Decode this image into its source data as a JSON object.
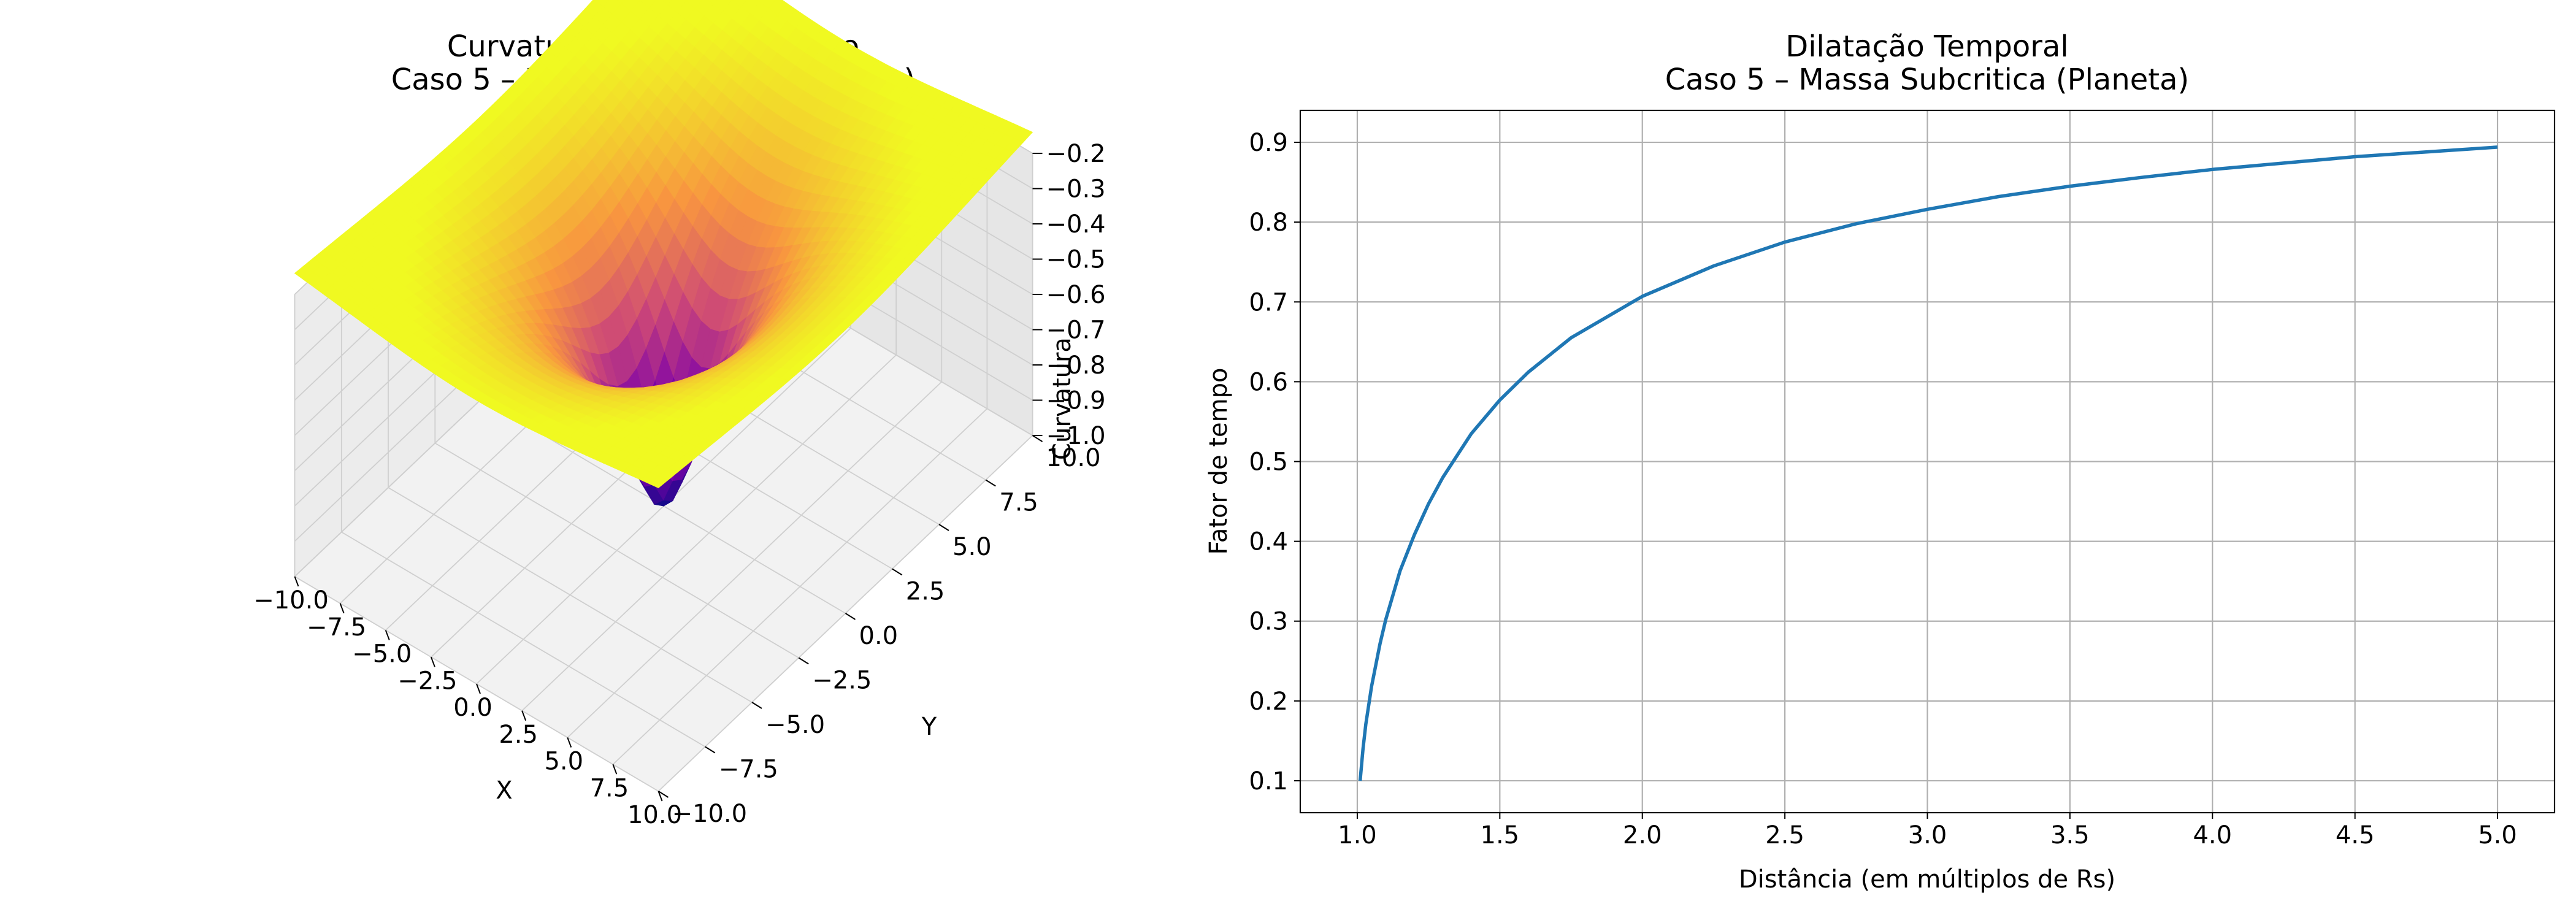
{
  "chart_data": [
    {
      "type": "surface3d",
      "title_line1": "Curvatura do Espaço-Tempo",
      "title_line2": "Caso 5 – Massa Subcritica (Planeta)",
      "xlabel": "X",
      "ylabel": "Y",
      "zlabel": "Curvatura",
      "xlim": [
        -10,
        10
      ],
      "ylim": [
        -10,
        10
      ],
      "zlim": [
        -1.0,
        -0.2
      ],
      "x_ticks": [
        "−10.0",
        "−7.5",
        "−5.0",
        "−2.5",
        "0.0",
        "2.5",
        "5.0",
        "7.5",
        "10.0"
      ],
      "y_ticks": [
        "−10.0",
        "−7.5",
        "−5.0",
        "−2.5",
        "0.0",
        "2.5",
        "5.0",
        "7.5",
        "10.0"
      ],
      "z_ticks": [
        "−0.2",
        "−0.3",
        "−0.4",
        "−0.5",
        "−0.6",
        "−0.7",
        "−0.8",
        "−0.9",
        "−1.0"
      ],
      "colormap": "plasma",
      "grid": true
    },
    {
      "type": "line",
      "title_line1": "Dilatação Temporal",
      "title_line2": "Caso 5 – Massa Subcritica (Planeta)",
      "xlabel": "Distância (em múltiplos de Rs)",
      "ylabel": "Fator de tempo",
      "xlim": [
        0.8,
        5.2
      ],
      "ylim": [
        0.06,
        0.94
      ],
      "x_ticks": [
        "1.0",
        "1.5",
        "2.0",
        "2.5",
        "3.0",
        "3.5",
        "4.0",
        "4.5",
        "5.0"
      ],
      "y_ticks": [
        "0.1",
        "0.2",
        "0.3",
        "0.4",
        "0.5",
        "0.6",
        "0.7",
        "0.8",
        "0.9"
      ],
      "grid": true,
      "series": [
        {
          "color": "#1f77b4",
          "x": [
            1.01,
            1.02,
            1.03,
            1.05,
            1.08,
            1.1,
            1.15,
            1.2,
            1.25,
            1.3,
            1.4,
            1.5,
            1.6,
            1.75,
            2.0,
            2.25,
            2.5,
            2.75,
            3.0,
            3.25,
            3.5,
            3.75,
            4.0,
            4.25,
            4.5,
            4.75,
            5.0
          ],
          "y": [
            0.1,
            0.14,
            0.171,
            0.218,
            0.272,
            0.302,
            0.363,
            0.408,
            0.447,
            0.48,
            0.535,
            0.577,
            0.612,
            0.655,
            0.707,
            0.745,
            0.775,
            0.798,
            0.816,
            0.832,
            0.845,
            0.856,
            0.866,
            0.874,
            0.882,
            0.888,
            0.894
          ]
        }
      ]
    }
  ]
}
